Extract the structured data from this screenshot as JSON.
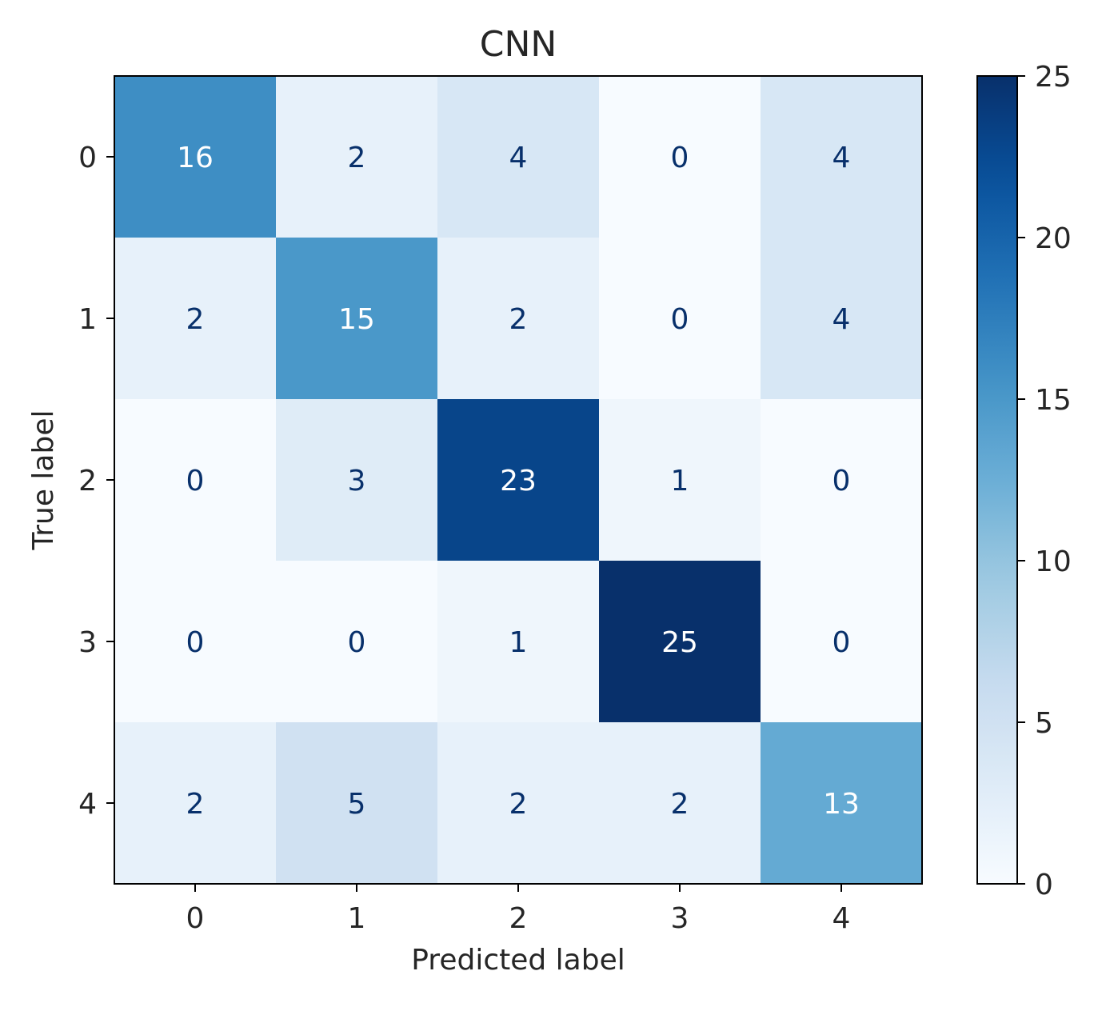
{
  "chart_data": {
    "type": "heatmap",
    "title": "CNN",
    "xlabel": "Predicted label",
    "ylabel": "True label",
    "x_categories": [
      "0",
      "1",
      "2",
      "3",
      "4"
    ],
    "y_categories": [
      "0",
      "1",
      "2",
      "3",
      "4"
    ],
    "matrix": [
      [
        16,
        2,
        4,
        0,
        4
      ],
      [
        2,
        15,
        2,
        0,
        4
      ],
      [
        0,
        3,
        23,
        1,
        0
      ],
      [
        0,
        0,
        1,
        25,
        0
      ],
      [
        2,
        5,
        2,
        2,
        13
      ]
    ],
    "colormap": "Blues",
    "vmin": 0,
    "vmax": 25,
    "colorbar_ticks": [
      0,
      5,
      10,
      15,
      20,
      25
    ],
    "colors": {
      "low": "#f7fbff",
      "high": "#08306b",
      "text_light": "#ffffff",
      "text_dark": "#08306b",
      "axis": "#000000",
      "label_text": "#262626"
    }
  }
}
